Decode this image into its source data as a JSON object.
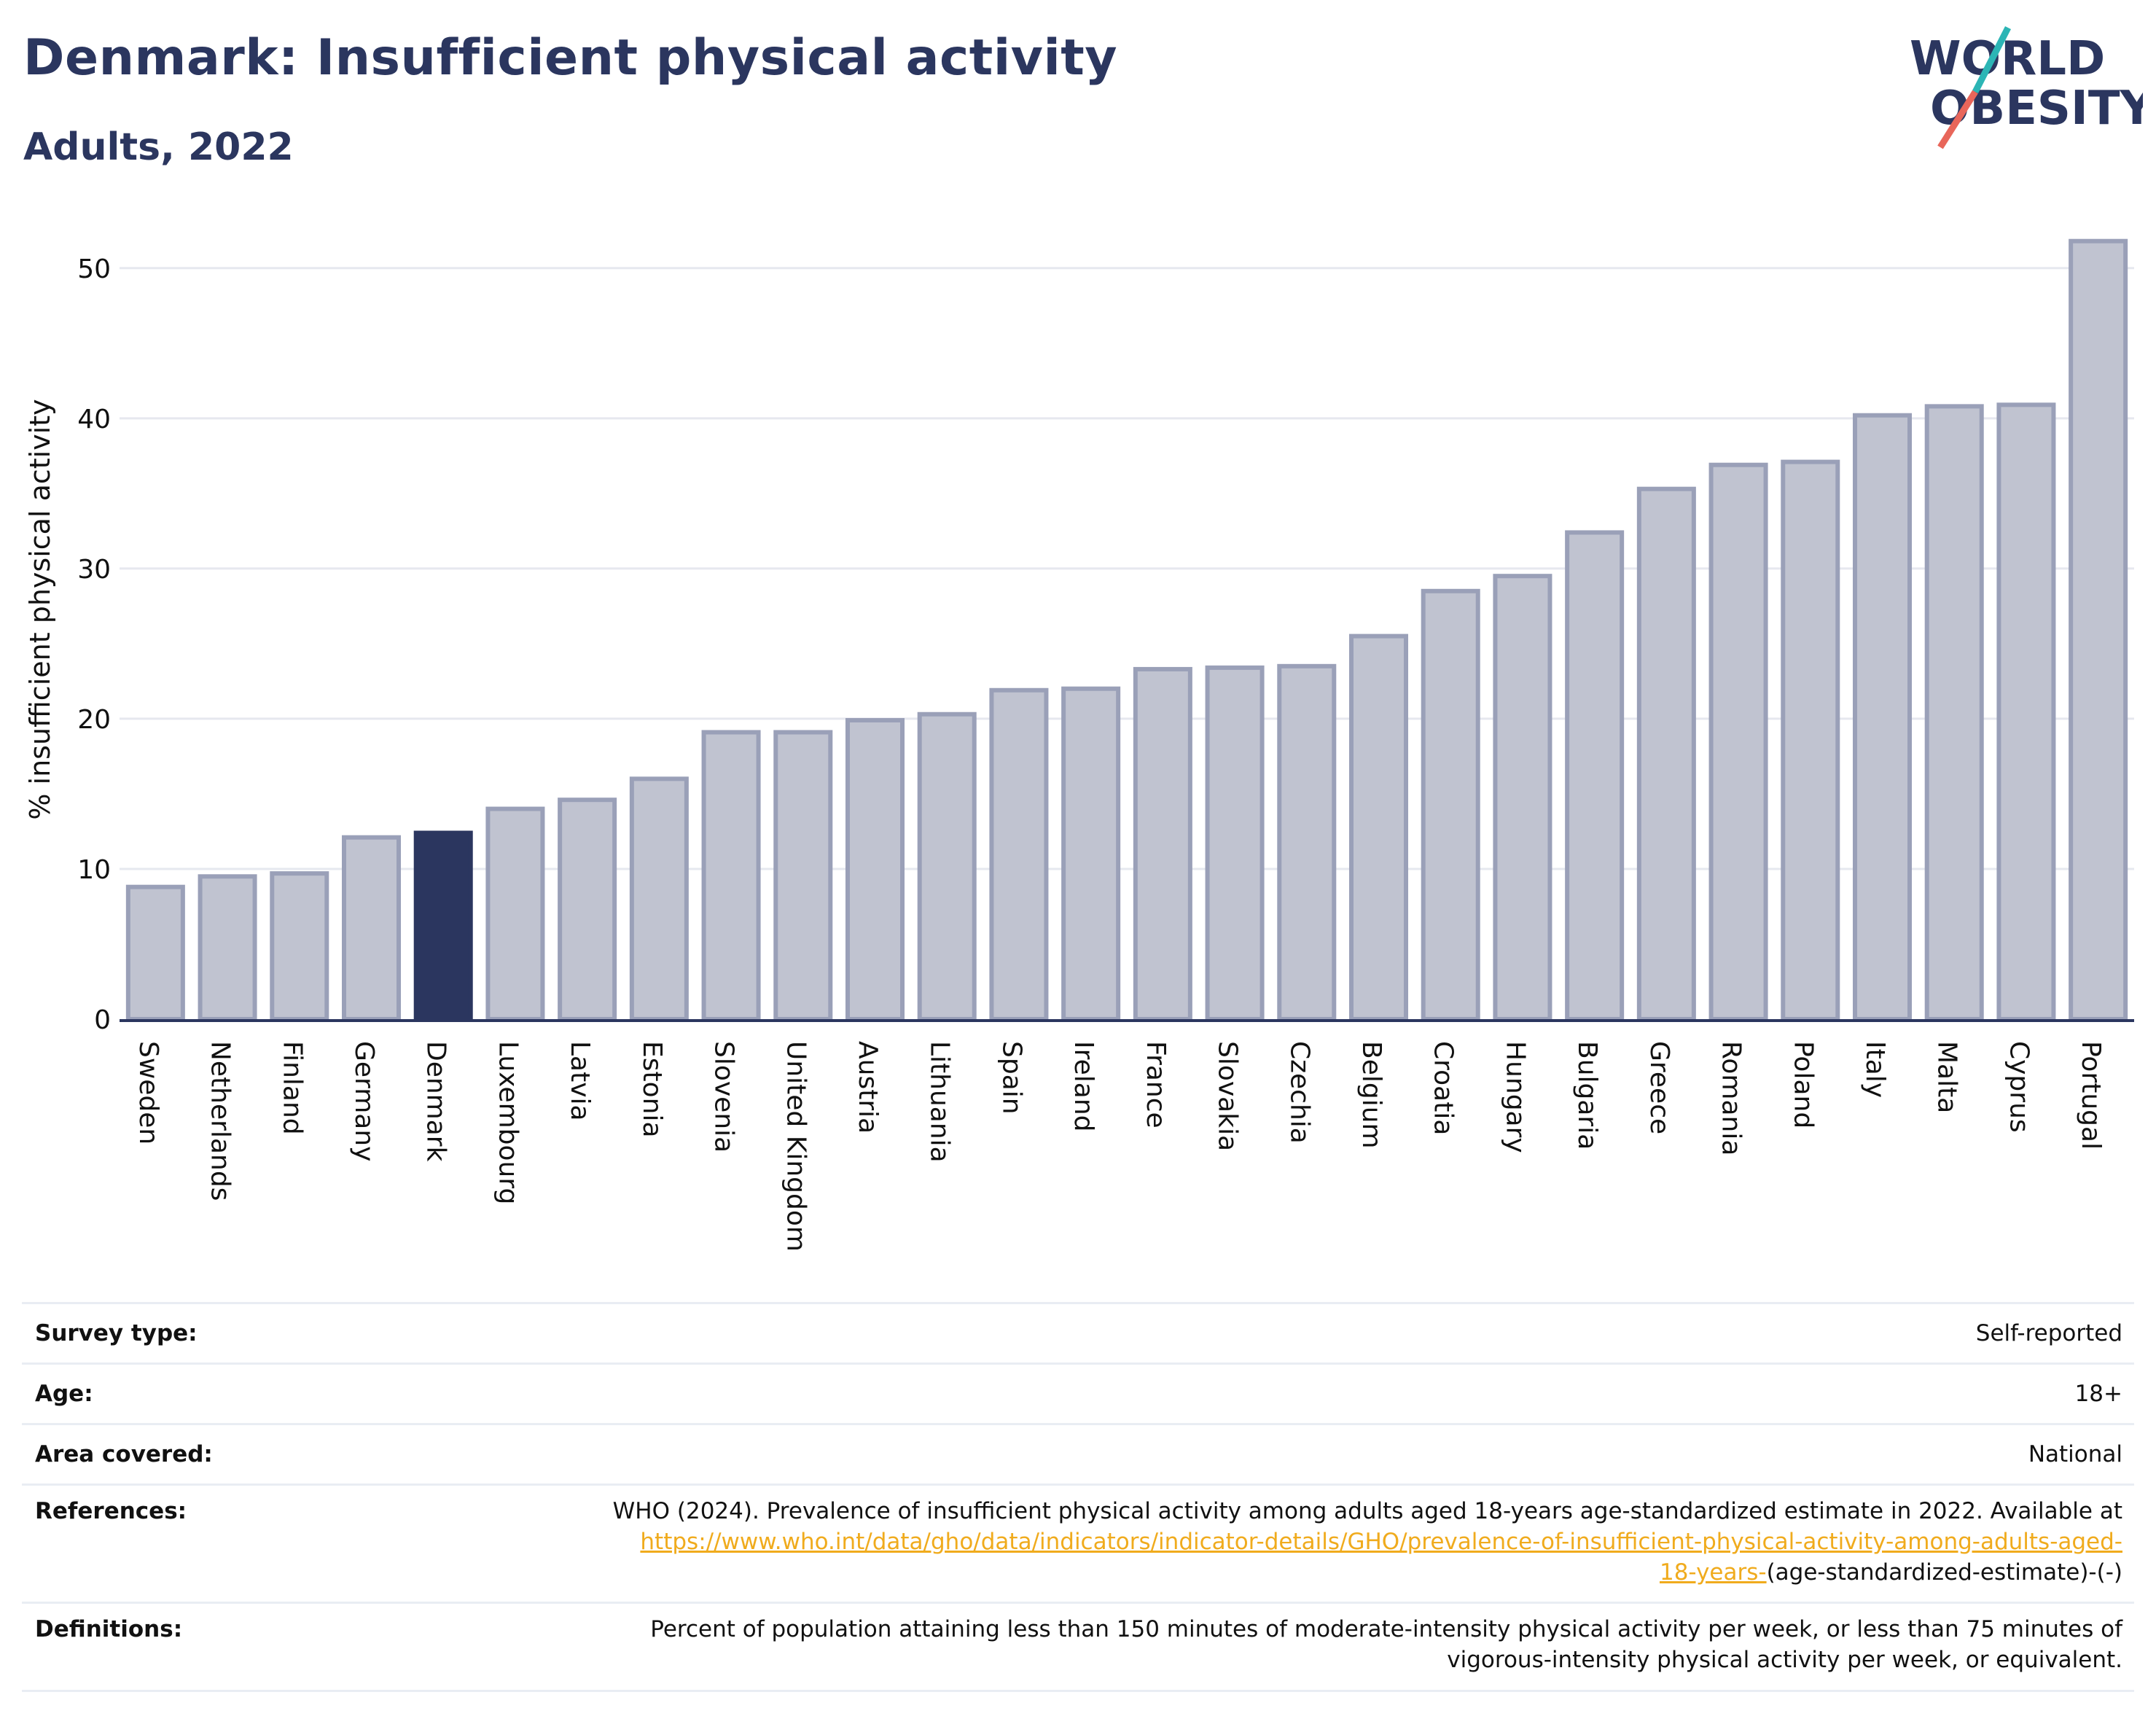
{
  "header": {
    "title": "Denmark: Insufficient physical activity",
    "subtitle": "Adults, 2022"
  },
  "logo": {
    "line1": "WORLD",
    "line2": "OBESITY",
    "colors": {
      "text": "#2b365f",
      "slash_top": "#2cb5b5",
      "slash_bottom": "#e8665a"
    }
  },
  "chart_data": {
    "type": "bar",
    "title": "",
    "xlabel": "",
    "ylabel": "% insufficient physical activity",
    "ylim": [
      0,
      53
    ],
    "yticks": [
      0,
      10,
      20,
      30,
      40,
      50
    ],
    "grid": true,
    "highlight": "Denmark",
    "colors": {
      "bar": "#c0c3d0",
      "bar_edge": "#9aa0b8",
      "highlight": "#2b365f",
      "grid": "#e6e8ef"
    },
    "categories": [
      "Sweden",
      "Netherlands",
      "Finland",
      "Germany",
      "Denmark",
      "Luxembourg",
      "Latvia",
      "Estonia",
      "Slovenia",
      "United Kingdom",
      "Austria",
      "Lithuania",
      "Spain",
      "Ireland",
      "France",
      "Slovakia",
      "Czechia",
      "Belgium",
      "Croatia",
      "Hungary",
      "Bulgaria",
      "Greece",
      "Romania",
      "Poland",
      "Italy",
      "Malta",
      "Cyprus",
      "Portugal"
    ],
    "values": [
      8.8,
      9.5,
      9.7,
      12.1,
      12.4,
      14.0,
      14.6,
      16.0,
      19.1,
      19.1,
      19.9,
      20.3,
      21.9,
      22.0,
      23.3,
      23.4,
      23.5,
      25.5,
      28.5,
      29.5,
      32.4,
      35.3,
      36.9,
      37.1,
      40.2,
      40.8,
      40.9,
      51.8
    ]
  },
  "meta": [
    {
      "label": "Survey type:",
      "value": "Self-reported"
    },
    {
      "label": "Age:",
      "value": "18+"
    },
    {
      "label": "Area covered:",
      "value": "National"
    },
    {
      "label": "References:",
      "value_text": "WHO (2024). Prevalence of insufficient physical activity among adults aged 18-years age-standardized estimate in 2022. Available at",
      "value_link_1": "https://www.who.int/data/gho/data/indicators/indicator-details/GHO/prevalence-of-insufficient-physical-activity-among-adults-aged-",
      "value_link_2": "18-years-",
      "value_tail": "(age-standardized-estimate)-(-)"
    },
    {
      "label": "Definitions:",
      "value_line_1": "Percent of population attaining less than 150 minutes of moderate-intensity physical activity per week, or less than 75 minutes of",
      "value_line_2": "vigorous-intensity physical activity per week, or equivalent."
    }
  ]
}
